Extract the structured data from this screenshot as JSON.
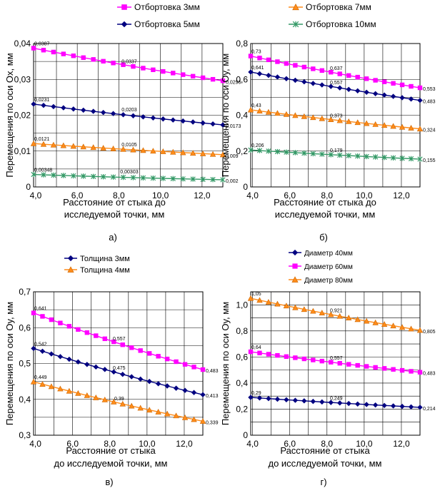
{
  "chart_data": [
    {
      "type": "line",
      "panel_label": "а)",
      "xlabel_lines": [
        "Расстояние от стыка до",
        "исследуемой точки, мм"
      ],
      "ylabel": "Перемещения по оси Ox, мм",
      "xlim": [
        3.9,
        13.0
      ],
      "ylim": [
        0,
        0.04
      ],
      "xticks": [
        4.0,
        6.0,
        8.0,
        10.0,
        12.0
      ],
      "xtick_labels": [
        "4,0",
        "6,0",
        "8,0",
        "10,0",
        "12,0"
      ],
      "yticks": [
        0,
        0.01,
        0.02,
        0.03,
        0.04
      ],
      "ytick_labels": [
        "0",
        "0,01",
        "0,02",
        "0,03",
        "0,04"
      ],
      "grid": true,
      "legend_placement": "top",
      "series": [
        {
          "name": "Отбортовка 3мм",
          "color": "#ff00ff",
          "marker": "square",
          "x_start": 3.9,
          "x_end": 13.0,
          "points": 20,
          "y_start": 0.0387,
          "y_end": 0.0296,
          "labels": [
            {
              "x": 3.9,
              "y": 0.0387,
              "text": "0,0387"
            },
            {
              "x": 8.5,
              "y": 0.0337,
              "text": "0,0337"
            },
            {
              "x": 13.0,
              "y": 0.0296,
              "text": "0,0296"
            }
          ]
        },
        {
          "name": "Отбортовка 5мм",
          "color": "#000080",
          "marker": "diamond",
          "x_start": 3.9,
          "x_end": 13.0,
          "points": 20,
          "y_start": 0.0231,
          "y_end": 0.0173,
          "labels": [
            {
              "x": 3.9,
              "y": 0.0231,
              "text": "0,0231"
            },
            {
              "x": 8.5,
              "y": 0.0203,
              "text": "0,0203"
            },
            {
              "x": 13.0,
              "y": 0.0173,
              "text": "0,0173"
            }
          ]
        },
        {
          "name": "Отбортовка 7мм",
          "color": "#ff8c1a",
          "marker": "triangle",
          "x_start": 3.9,
          "x_end": 13.0,
          "points": 20,
          "y_start": 0.0121,
          "y_end": 0.009,
          "labels": [
            {
              "x": 3.9,
              "y": 0.0121,
              "text": "0,0121"
            },
            {
              "x": 8.5,
              "y": 0.0105,
              "text": "0,0105"
            },
            {
              "x": 13.0,
              "y": 0.009,
              "text": "0,009"
            }
          ]
        },
        {
          "name": "Отбортовка 10мм",
          "color": "#339966",
          "marker": "star",
          "x_start": 3.9,
          "x_end": 13.0,
          "points": 20,
          "y_start": 0.00348,
          "y_end": 0.002,
          "labels": [
            {
              "x": 3.9,
              "y": 0.00348,
              "text": "0,00348"
            },
            {
              "x": 8.5,
              "y": 0.00303,
              "text": "0,00303"
            },
            {
              "x": 13.0,
              "y": 0.002,
              "text": "0,002"
            }
          ]
        }
      ]
    },
    {
      "type": "line",
      "panel_label": "б)",
      "xlabel_lines": [
        "Расстояние от стыка до",
        "исследуемой точки, мм"
      ],
      "ylabel": "Перемещения по оси Oy, мм",
      "xlim": [
        3.9,
        13.0
      ],
      "ylim": [
        0,
        0.8
      ],
      "xticks": [
        4.0,
        6.0,
        8.0,
        10.0,
        12.0
      ],
      "xtick_labels": [
        "4,0",
        "6,0",
        "8,0",
        "10,0",
        "12,0"
      ],
      "yticks": [
        0,
        0.2,
        0.4,
        0.6,
        0.8
      ],
      "ytick_labels": [
        "0",
        "0,2",
        "0,4",
        "0,6",
        "0,8"
      ],
      "grid": true,
      "legend_placement": "top",
      "series": [
        {
          "name": "Отбортовка 3мм",
          "color": "#ff00ff",
          "marker": "square",
          "x_start": 3.9,
          "x_end": 13.0,
          "points": 20,
          "y_start": 0.73,
          "y_end": 0.553,
          "labels": [
            {
              "x": 3.9,
              "y": 0.73,
              "text": "0,73"
            },
            {
              "x": 8.5,
              "y": 0.637,
              "text": "0,637"
            },
            {
              "x": 13.0,
              "y": 0.553,
              "text": "0,553"
            }
          ]
        },
        {
          "name": "Отбортовка 5мм",
          "color": "#000080",
          "marker": "diamond",
          "x_start": 3.9,
          "x_end": 13.0,
          "points": 20,
          "y_start": 0.641,
          "y_end": 0.483,
          "labels": [
            {
              "x": 3.9,
              "y": 0.641,
              "text": "0,641"
            },
            {
              "x": 8.5,
              "y": 0.557,
              "text": "0,557"
            },
            {
              "x": 13.0,
              "y": 0.483,
              "text": "0,483"
            }
          ]
        },
        {
          "name": "Отбортовка 7мм",
          "color": "#ff8c1a",
          "marker": "triangle",
          "x_start": 3.9,
          "x_end": 13.0,
          "points": 20,
          "y_start": 0.43,
          "y_end": 0.324,
          "labels": [
            {
              "x": 3.9,
              "y": 0.43,
              "text": "0,43"
            },
            {
              "x": 8.5,
              "y": 0.373,
              "text": "0,373"
            },
            {
              "x": 13.0,
              "y": 0.324,
              "text": "0,324"
            }
          ]
        },
        {
          "name": "Отбортовка 10мм",
          "color": "#339966",
          "marker": "star",
          "x_start": 3.9,
          "x_end": 13.0,
          "points": 20,
          "y_start": 0.206,
          "y_end": 0.155,
          "labels": [
            {
              "x": 3.9,
              "y": 0.206,
              "text": "0,206"
            },
            {
              "x": 8.5,
              "y": 0.179,
              "text": "0,179"
            },
            {
              "x": 13.0,
              "y": 0.155,
              "text": "0,155"
            }
          ]
        }
      ]
    },
    {
      "type": "line",
      "panel_label": "в)",
      "xlabel_lines": [
        "Расстояние от стыка",
        "до исследуемой точки, мм"
      ],
      "ylabel": "Перемещения по оси Oy, мм",
      "xlim": [
        3.9,
        13.0
      ],
      "ylim": [
        0.3,
        0.7
      ],
      "xticks": [
        4.0,
        6.0,
        8.0,
        10.0,
        12.0
      ],
      "xtick_labels": [
        "4,0",
        "6,0",
        "8,0",
        "10,0",
        "12,0"
      ],
      "yticks": [
        0.3,
        0.4,
        0.5,
        0.6,
        0.7
      ],
      "ytick_labels": [
        "0,3",
        "0,4",
        "0,5",
        "0,6",
        "0,7"
      ],
      "grid": true,
      "legend_placement": "top",
      "series": [
        {
          "name": "Толщина 3мм",
          "color": "#000080",
          "marker": "diamond",
          "x_start": 3.9,
          "x_end": 13.0,
          "points": 20,
          "y_start": 0.542,
          "y_end": 0.413,
          "labels": [
            {
              "x": 3.9,
              "y": 0.542,
              "text": "0,542"
            },
            {
              "x": 8.5,
              "y": 0.475,
              "text": "0,475"
            },
            {
              "x": 13.0,
              "y": 0.413,
              "text": "0,413"
            }
          ]
        },
        {
          "name": "Толщина 4мм",
          "color": "#ff8c1a",
          "marker": "triangle",
          "x_start": 3.9,
          "x_end": 13.0,
          "points": 20,
          "y_start": 0.449,
          "y_end": 0.339,
          "labels": [
            {
              "x": 3.9,
              "y": 0.449,
              "text": "0,449"
            },
            {
              "x": 8.5,
              "y": 0.39,
              "text": "0,39"
            },
            {
              "x": 13.0,
              "y": 0.339,
              "text": "0,339"
            }
          ]
        },
        {
          "name": "",
          "color": "#ff00ff",
          "marker": "square",
          "x_start": 3.9,
          "x_end": 13.0,
          "points": 20,
          "y_start": 0.641,
          "y_end": 0.483,
          "labels": [
            {
              "x": 3.9,
              "y": 0.641,
              "text": "0,641"
            },
            {
              "x": 8.5,
              "y": 0.557,
              "text": "0,557"
            },
            {
              "x": 13.0,
              "y": 0.483,
              "text": "0,483"
            }
          ]
        }
      ]
    },
    {
      "type": "line",
      "panel_label": "г)",
      "xlabel_lines": [
        "Расстояние от стыка",
        "до исследуемой точки, мм"
      ],
      "ylabel": "Перемещения по оси Oy, мм",
      "xlim": [
        3.9,
        13.0
      ],
      "ylim": [
        0,
        1.1
      ],
      "xticks": [
        4.0,
        6.0,
        8.0,
        10.0,
        12.0
      ],
      "xtick_labels": [
        "4,0",
        "6,0",
        "8,0",
        "10,0",
        "12,0"
      ],
      "yticks": [
        0,
        0.2,
        0.4,
        0.6,
        0.8,
        1.0
      ],
      "ytick_labels": [
        "0",
        "0,2",
        "0,4",
        "0,6",
        "0,8",
        "1,0"
      ],
      "grid": true,
      "legend_placement": "top",
      "series": [
        {
          "name": "Диаметр 40мм",
          "color": "#000080",
          "marker": "diamond",
          "x_start": 3.9,
          "x_end": 13.0,
          "points": 20,
          "y_start": 0.29,
          "y_end": 0.214,
          "labels": [
            {
              "x": 3.9,
              "y": 0.29,
              "text": "0,29"
            },
            {
              "x": 8.5,
              "y": 0.249,
              "text": "0,249"
            },
            {
              "x": 13.0,
              "y": 0.214,
              "text": "0,214"
            }
          ]
        },
        {
          "name": "Диаметр 60мм",
          "color": "#ff00ff",
          "marker": "square",
          "x_start": 3.9,
          "x_end": 13.0,
          "points": 20,
          "y_start": 0.64,
          "y_end": 0.483,
          "labels": [
            {
              "x": 3.9,
              "y": 0.64,
              "text": "0,64"
            },
            {
              "x": 8.5,
              "y": 0.557,
              "text": "0,557"
            },
            {
              "x": 13.0,
              "y": 0.483,
              "text": "0,483"
            }
          ]
        },
        {
          "name": "Диаметр 80мм",
          "color": "#ff8c1a",
          "marker": "triangle",
          "x_start": 3.9,
          "x_end": 13.0,
          "points": 20,
          "y_start": 1.05,
          "y_end": 0.805,
          "labels": [
            {
              "x": 3.9,
              "y": 1.05,
              "text": "1,05"
            },
            {
              "x": 8.5,
              "y": 0.921,
              "text": "0,921"
            },
            {
              "x": 13.0,
              "y": 0.805,
              "text": "0,805"
            }
          ]
        }
      ]
    }
  ]
}
